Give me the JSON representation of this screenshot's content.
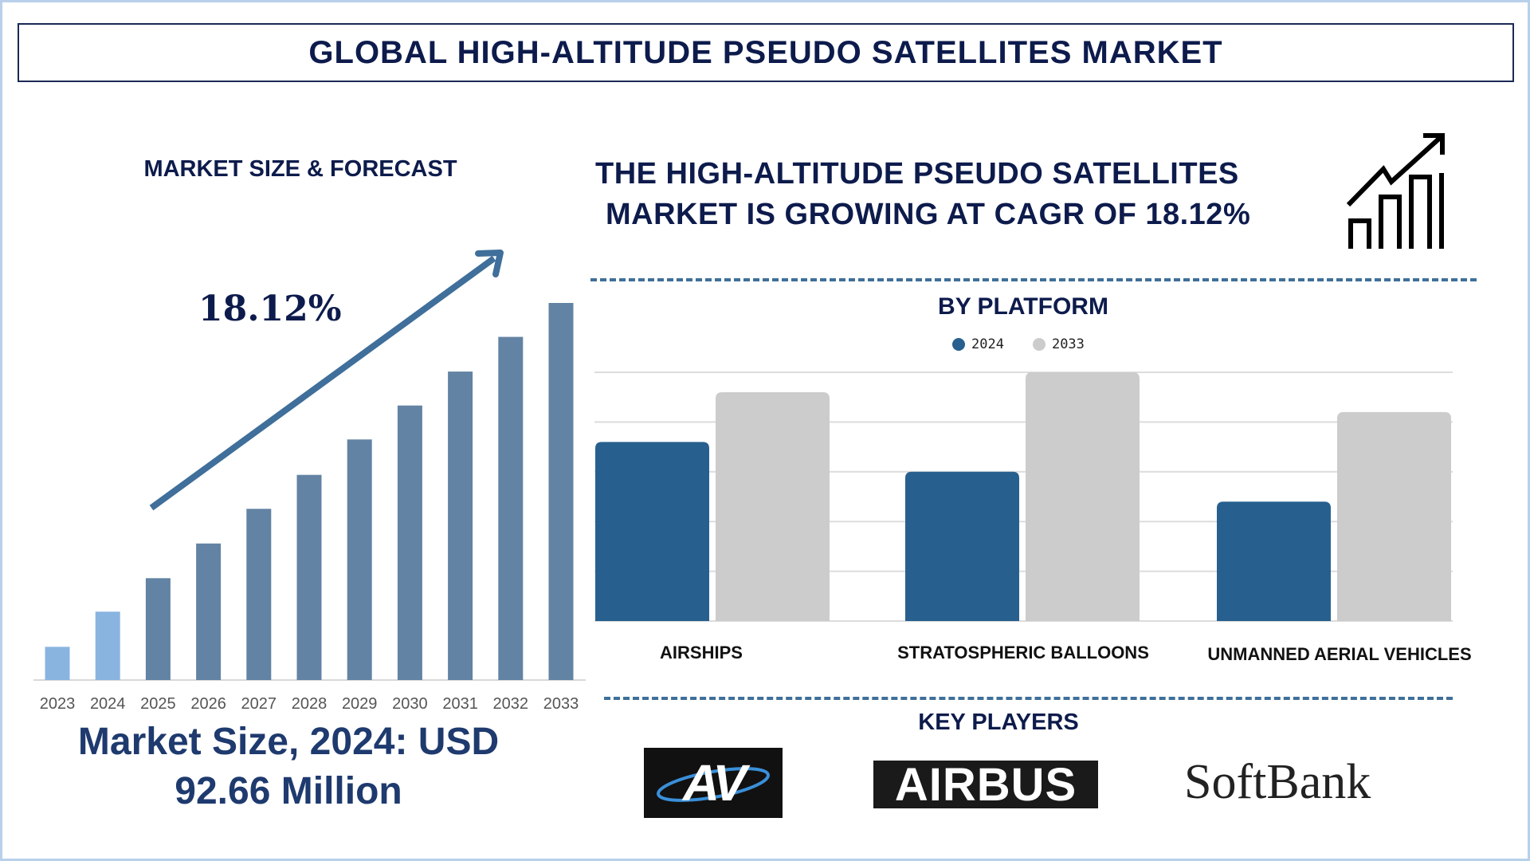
{
  "header": {
    "title": "GLOBAL HIGH-ALTITUDE PSEUDO SATELLITES MARKET"
  },
  "left": {
    "subtitle": "MARKET SIZE & FORECAST",
    "cagr": "18.12%",
    "market_size_line1": "Market Size, 2024: USD",
    "market_size_line2": "92.66 Million"
  },
  "right": {
    "headline_line1": "THE HIGH-ALTITUDE PSEUDO SATELLITES",
    "headline_line2": "MARKET IS GROWING AT CAGR OF 18.12%",
    "growth_icon": "bar-chart-growth-arrow-icon",
    "segment_title": "BY PLATFORM",
    "key_players_title": "KEY PLAYERS",
    "key_players": [
      "AV",
      "AIRBUS",
      "SoftBank"
    ]
  },
  "colors": {
    "dark_navy": "#0d1b4c",
    "bar_forecast": "#6283a3",
    "bar_historic": "#8ab4e0",
    "series_2024": "#27608f",
    "series_2033": "#cccccc",
    "arrow": "#3f6f9a"
  },
  "chart_data": [
    {
      "type": "bar",
      "title": "MARKET SIZE & FORECAST",
      "categories": [
        "2023",
        "2024",
        "2025",
        "2026",
        "2027",
        "2028",
        "2029",
        "2030",
        "2031",
        "2032",
        "2033"
      ],
      "values": [
        45,
        92.66,
        138,
        185,
        232,
        278,
        326,
        372,
        418,
        465,
        511
      ],
      "annotation": "18.12%",
      "grid": false,
      "axis_values_shown": false
    },
    {
      "type": "bar",
      "title": "BY PLATFORM",
      "categories": [
        "AIRSHIPS",
        "STRATOSPHERIC BALLOONS",
        "UNMANNED AERIAL VEHICLES"
      ],
      "series": [
        {
          "name": "2024",
          "values": [
            3.6,
            3.0,
            2.4
          ]
        },
        {
          "name": "2033",
          "values": [
            4.6,
            5.0,
            4.2
          ]
        }
      ],
      "ylim": [
        0,
        5
      ],
      "grid": true,
      "legend": "top-center",
      "axis_values_shown": false
    }
  ]
}
